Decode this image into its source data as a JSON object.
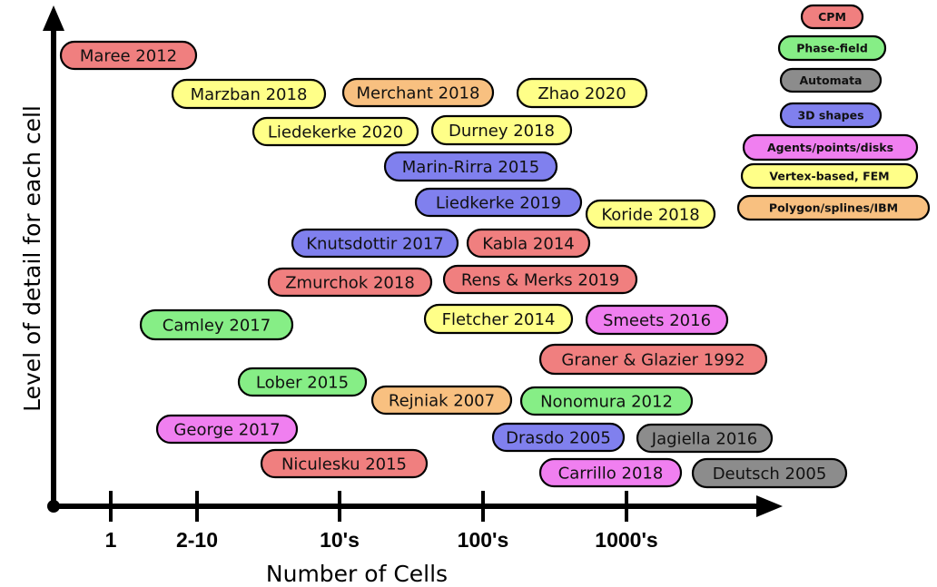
{
  "axes": {
    "xlabel": "Number of Cells",
    "ylabel": "Level of detail for each cell",
    "ticks": [
      "1",
      "2-10",
      "10's",
      "100's",
      "1000's"
    ]
  },
  "categories": [
    {
      "name": "CPM",
      "color": "#f07f7f"
    },
    {
      "name": "Phase-field",
      "color": "#86ee86"
    },
    {
      "name": "Automata",
      "color": "#8c8c8c"
    },
    {
      "name": "3D shapes",
      "color": "#8080ee"
    },
    {
      "name": "Agents/points/disks",
      "color": "#f07ff0"
    },
    {
      "name": "Vertex-based, FEM",
      "color": "#ffff88"
    },
    {
      "name": "Polygon/splines/IBM",
      "color": "#f8c080"
    }
  ],
  "publications": [
    {
      "label": "Maree 2012",
      "category": "CPM"
    },
    {
      "label": "Marzban 2018",
      "category": "Vertex-based, FEM"
    },
    {
      "label": "Merchant 2018",
      "category": "Polygon/splines/IBM"
    },
    {
      "label": "Zhao 2020",
      "category": "Vertex-based, FEM"
    },
    {
      "label": "Liedekerke 2020",
      "category": "Vertex-based, FEM"
    },
    {
      "label": "Durney 2018",
      "category": "Vertex-based, FEM"
    },
    {
      "label": "Marin-Rirra 2015",
      "category": "3D shapes"
    },
    {
      "label": "Liedkerke 2019",
      "category": "3D shapes"
    },
    {
      "label": "Koride 2018",
      "category": "Vertex-based, FEM"
    },
    {
      "label": "Knutsdottir 2017",
      "category": "3D shapes"
    },
    {
      "label": "Kabla 2014",
      "category": "CPM"
    },
    {
      "label": "Zmurchok 2018",
      "category": "CPM"
    },
    {
      "label": "Rens & Merks 2019",
      "category": "CPM"
    },
    {
      "label": "Camley 2017",
      "category": "Phase-field"
    },
    {
      "label": "Fletcher 2014",
      "category": "Vertex-based, FEM"
    },
    {
      "label": "Smeets 2016",
      "category": "Agents/points/disks"
    },
    {
      "label": "Graner & Glazier 1992",
      "category": "CPM"
    },
    {
      "label": "Lober 2015",
      "category": "Phase-field"
    },
    {
      "label": "Rejniak 2007",
      "category": "Polygon/splines/IBM"
    },
    {
      "label": "Nonomura 2012",
      "category": "Phase-field"
    },
    {
      "label": "George 2017",
      "category": "Agents/points/disks"
    },
    {
      "label": "Drasdo 2005",
      "category": "3D shapes"
    },
    {
      "label": "Jagiella 2016",
      "category": "Automata"
    },
    {
      "label": "Niculesku 2015",
      "category": "CPM"
    },
    {
      "label": "Carrillo 2018",
      "category": "Agents/points/disks"
    },
    {
      "label": "Deutsch 2005",
      "category": "Automata"
    }
  ]
}
